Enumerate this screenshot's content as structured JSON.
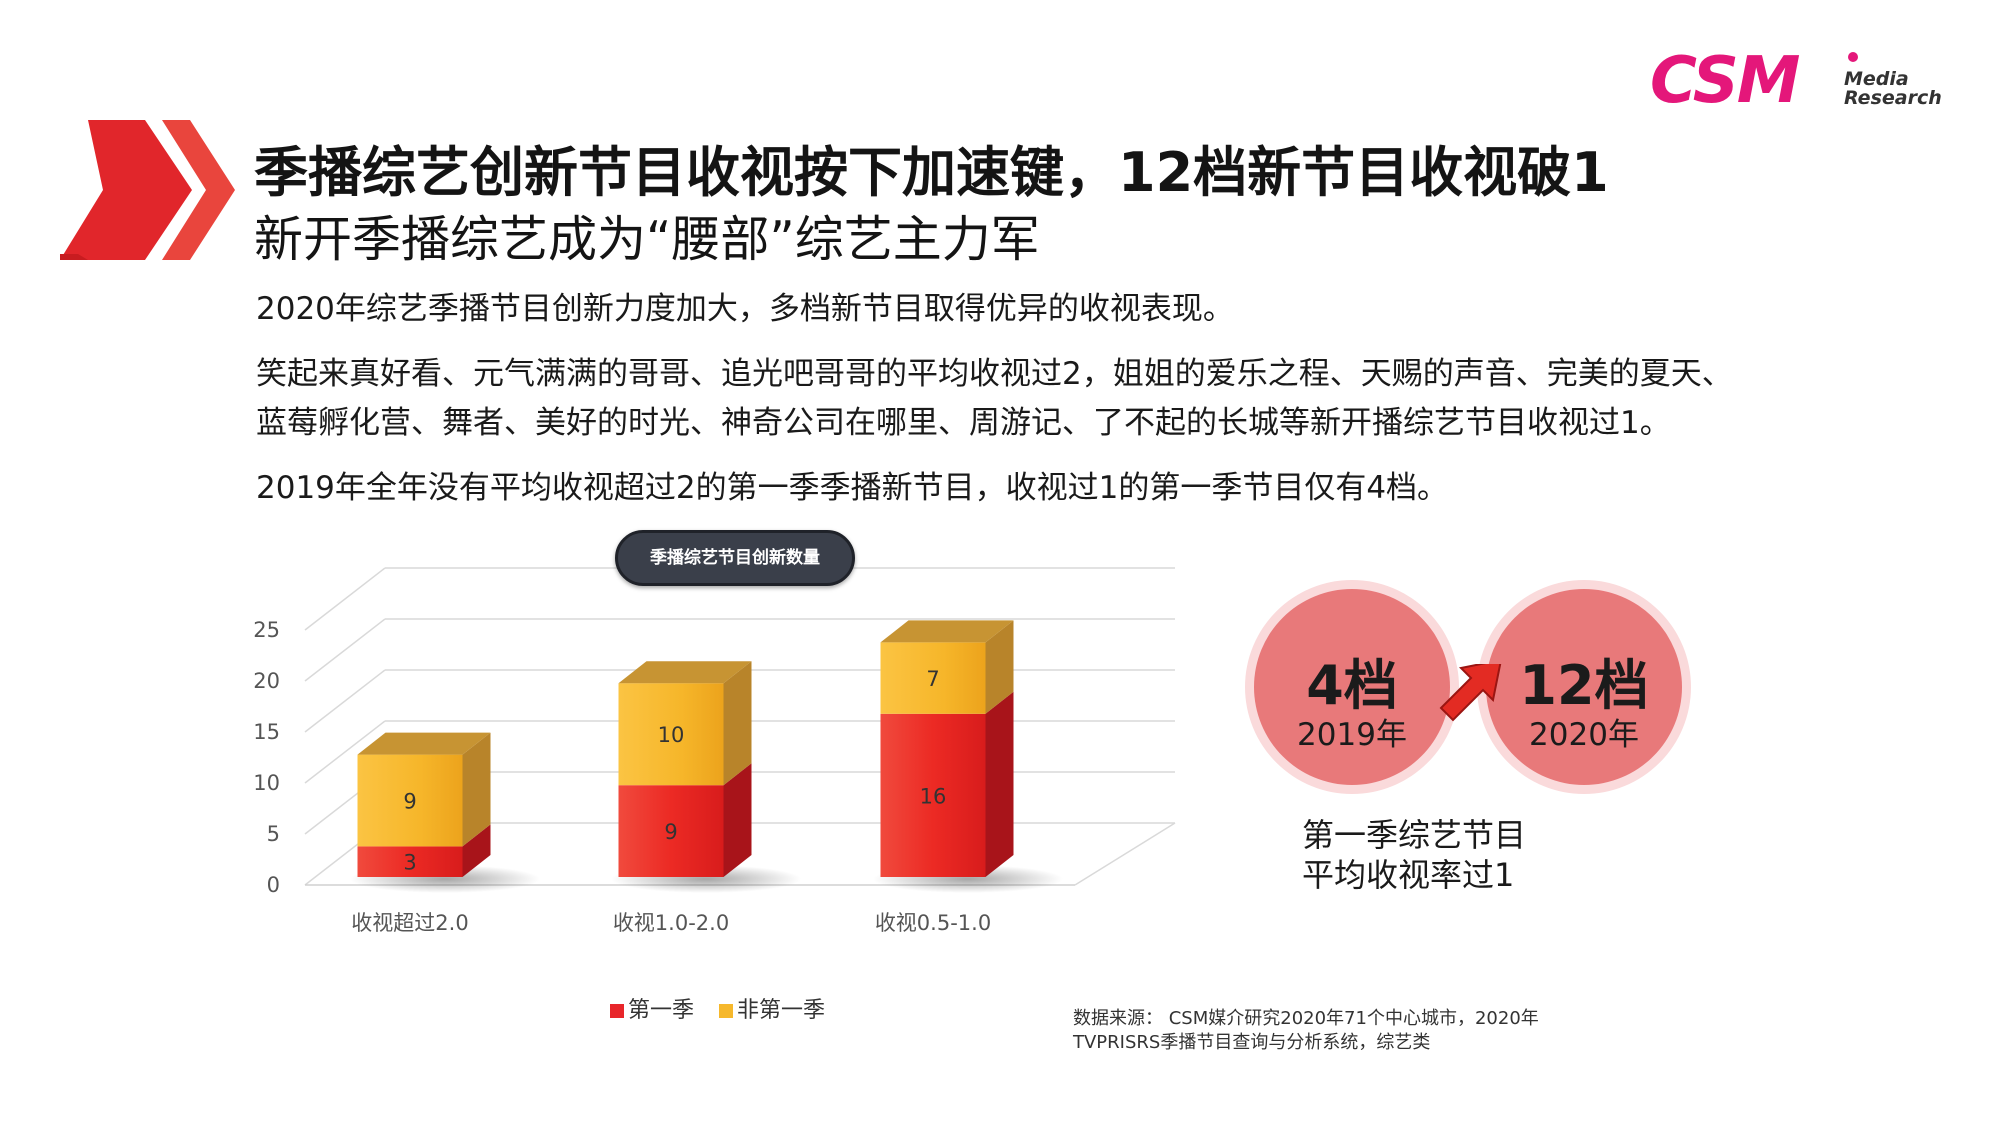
{
  "header": {
    "title": "季播综艺创新节目收视按下加速键，12档新节目收视破1",
    "subtitle": "新开季播综艺成为“腰部”综艺主力军"
  },
  "logo": {
    "main": "CSM",
    "sub1": "Media",
    "sub2": "Research"
  },
  "paragraphs": [
    "2020年综艺季播节目创新力度加大，多档新节目取得优异的收视表现。",
    "笑起来真好看、元气满满的哥哥、追光吧哥哥的平均收视过2，姐姐的爱乐之程、天赐的声音、完美的夏天、",
    "蓝莓孵化营、舞者、美好的时光、神奇公司在哪里、周游记、了不起的长城等新开播综艺节目收视过1。",
    "2019年全年没有平均收视超过2的第一季季播新节目，收视过1的第一季节目仅有4档。"
  ],
  "chart_data": {
    "type": "bar",
    "stacked": true,
    "title": "季播综艺节目创新数量",
    "categories": [
      "收视超过2.0",
      "收视1.0-2.0",
      "收视0.5-1.0"
    ],
    "series": [
      {
        "name": "第一季",
        "values": [
          3,
          9,
          16
        ],
        "color": "#e8262a"
      },
      {
        "name": "非第一季",
        "values": [
          9,
          10,
          7
        ],
        "color": "#f6b82c"
      }
    ],
    "yticks": [
      "0",
      "5",
      "10",
      "15",
      "20",
      "25"
    ],
    "ylim": [
      0,
      25
    ],
    "legend_position": "bottom",
    "grid": true
  },
  "comparison": {
    "left": {
      "count": "4档",
      "year": "2019年"
    },
    "right": {
      "count": "12档",
      "year": "2020年"
    },
    "caption_line1": "第一季综艺节目",
    "caption_line2": "平均收视率过1"
  },
  "source": {
    "line1": "数据来源： CSM媒介研究2020年71个中心城市，2020年",
    "line2": "TVPRISRS季播节目查询与分析系统，综艺类"
  }
}
